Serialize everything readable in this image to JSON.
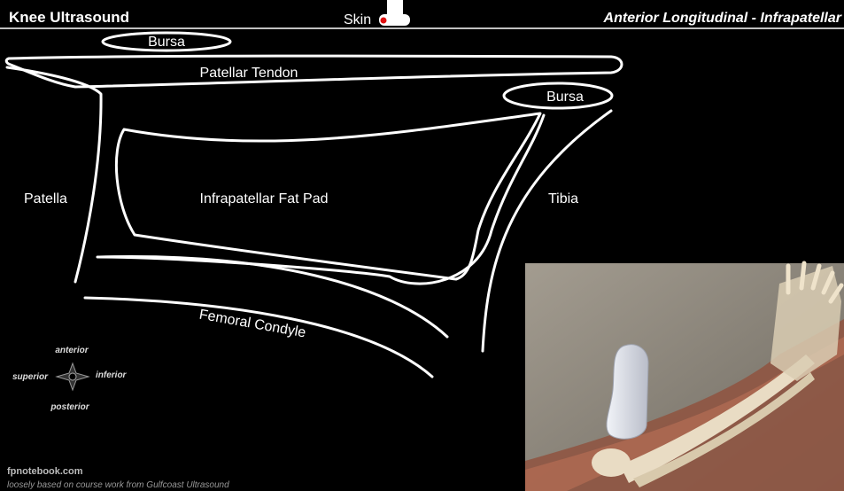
{
  "header": {
    "title": "Knee Ultrasound",
    "probe_label": "Skin",
    "view": "Anterior Longitudinal - Infrapatellar"
  },
  "labels": {
    "bursa_superior": "Bursa",
    "patellar_tendon": "Patellar Tendon",
    "bursa_inferior": "Bursa",
    "patella": "Patella",
    "fat_pad": "Infrapatellar Fat Pad",
    "tibia": "Tibia",
    "femoral_condyle": "Femoral Condyle"
  },
  "compass": {
    "anterior": "anterior",
    "superior": "superior",
    "inferior": "inferior",
    "posterior": "posterior"
  },
  "footer": {
    "site": "fpnotebook.com",
    "credit": "loosely based on course work from Gulfcoast Ultrasound"
  },
  "colors": {
    "background": "#000000",
    "outline": "#ffffff",
    "probe_marker": "#e01010",
    "inset_background": "#8a8378",
    "bone": "#e9dcc4",
    "muscle": "#9c5a47",
    "probe": "#d8dbe6"
  },
  "icons": {
    "probe": "ultrasound-probe-icon",
    "compass": "orientation-compass-icon"
  }
}
